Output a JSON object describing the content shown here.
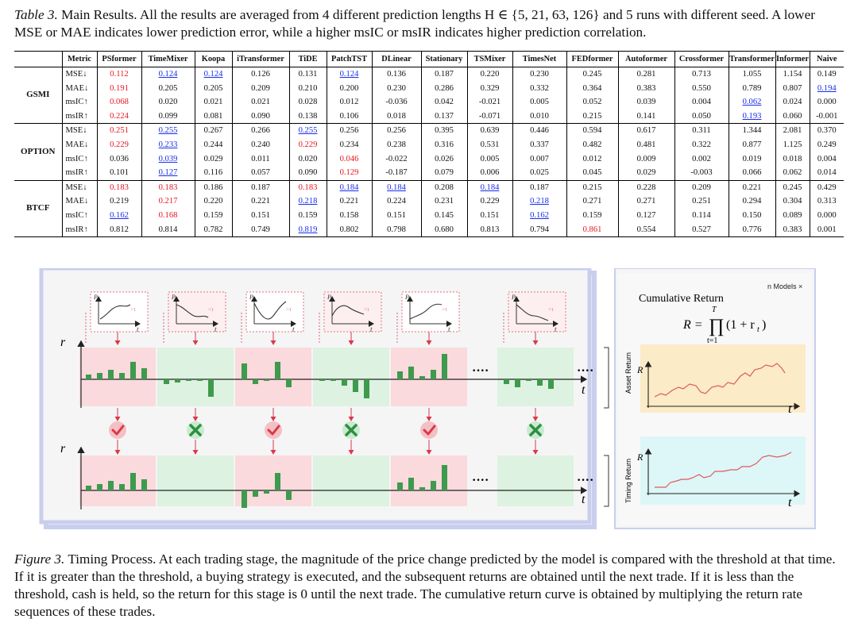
{
  "table_caption": {
    "label": "Table 3.",
    "text": "Main Results. All the results are averaged from 4 different prediction lengths H ∈ {5, 21, 63, 126} and 5 runs with different seed. A lower MSE or MAE indicates lower prediction error, while a higher msIC or msIR indicates higher prediction correlation."
  },
  "table": {
    "headers": [
      "Metric",
      "PSformer",
      "TimeMixer",
      "Koopa",
      "iTransformer",
      "TiDE",
      "PatchTST",
      "DLinear",
      "Stationary",
      "TSMixer",
      "TimesNet",
      "FEDformer",
      "Autoformer",
      "Crossformer",
      "Transformer",
      "Informer",
      "Naive"
    ],
    "groups": [
      {
        "dataset": "GSMI",
        "rows": [
          {
            "metric": "MSE↓",
            "cells": [
              [
                "0.112",
                "r"
              ],
              [
                "0.124",
                "b"
              ],
              [
                "0.124",
                "b"
              ],
              [
                "0.126",
                ""
              ],
              [
                "0.131",
                ""
              ],
              [
                "0.124",
                "b"
              ],
              [
                "0.136",
                ""
              ],
              [
                "0.187",
                ""
              ],
              [
                "0.220",
                ""
              ],
              [
                "0.230",
                ""
              ],
              [
                "0.245",
                ""
              ],
              [
                "0.281",
                ""
              ],
              [
                "0.713",
                ""
              ],
              [
                "1.055",
                ""
              ],
              [
                "1.154",
                ""
              ],
              [
                "0.149",
                ""
              ]
            ]
          },
          {
            "metric": "MAE↓",
            "cells": [
              [
                "0.191",
                "r"
              ],
              [
                "0.205",
                ""
              ],
              [
                "0.205",
                ""
              ],
              [
                "0.209",
                ""
              ],
              [
                "0.210",
                ""
              ],
              [
                "0.200",
                ""
              ],
              [
                "0.230",
                ""
              ],
              [
                "0.286",
                ""
              ],
              [
                "0.329",
                ""
              ],
              [
                "0.332",
                ""
              ],
              [
                "0.364",
                ""
              ],
              [
                "0.383",
                ""
              ],
              [
                "0.550",
                ""
              ],
              [
                "0.789",
                ""
              ],
              [
                "0.807",
                ""
              ],
              [
                "0.194",
                "b"
              ]
            ]
          },
          {
            "metric": "msIC↑",
            "cells": [
              [
                "0.068",
                "r"
              ],
              [
                "0.020",
                ""
              ],
              [
                "0.021",
                ""
              ],
              [
                "0.021",
                ""
              ],
              [
                "0.028",
                ""
              ],
              [
                "0.012",
                ""
              ],
              [
                "-0.036",
                ""
              ],
              [
                "0.042",
                ""
              ],
              [
                "-0.021",
                ""
              ],
              [
                "0.005",
                ""
              ],
              [
                "0.052",
                ""
              ],
              [
                "0.039",
                ""
              ],
              [
                "0.004",
                ""
              ],
              [
                "0.062",
                "b"
              ],
              [
                "0.024",
                ""
              ],
              [
                "0.000",
                ""
              ]
            ]
          },
          {
            "metric": "msIR↑",
            "cells": [
              [
                "0.224",
                "r"
              ],
              [
                "0.099",
                ""
              ],
              [
                "0.081",
                ""
              ],
              [
                "0.090",
                ""
              ],
              [
                "0.138",
                ""
              ],
              [
                "0.106",
                ""
              ],
              [
                "0.018",
                ""
              ],
              [
                "0.137",
                ""
              ],
              [
                "-0.071",
                ""
              ],
              [
                "0.010",
                ""
              ],
              [
                "0.215",
                ""
              ],
              [
                "0.141",
                ""
              ],
              [
                "0.050",
                ""
              ],
              [
                "0.193",
                "b"
              ],
              [
                "0.060",
                ""
              ],
              [
                "-0.001",
                ""
              ]
            ]
          }
        ]
      },
      {
        "dataset": "OPTION",
        "rows": [
          {
            "metric": "MSE↓",
            "cells": [
              [
                "0.251",
                "r"
              ],
              [
                "0.255",
                "b"
              ],
              [
                "0.267",
                ""
              ],
              [
                "0.266",
                ""
              ],
              [
                "0.255",
                "b"
              ],
              [
                "0.256",
                ""
              ],
              [
                "0.256",
                ""
              ],
              [
                "0.395",
                ""
              ],
              [
                "0.639",
                ""
              ],
              [
                "0.446",
                ""
              ],
              [
                "0.594",
                ""
              ],
              [
                "0.617",
                ""
              ],
              [
                "0.311",
                ""
              ],
              [
                "1.344",
                ""
              ],
              [
                "2.081",
                ""
              ],
              [
                "0.370",
                ""
              ]
            ]
          },
          {
            "metric": "MAE↓",
            "cells": [
              [
                "0.229",
                "r"
              ],
              [
                "0.233",
                "b"
              ],
              [
                "0.244",
                ""
              ],
              [
                "0.240",
                ""
              ],
              [
                "0.229",
                "r"
              ],
              [
                "0.234",
                ""
              ],
              [
                "0.238",
                ""
              ],
              [
                "0.316",
                ""
              ],
              [
                "0.531",
                ""
              ],
              [
                "0.337",
                ""
              ],
              [
                "0.482",
                ""
              ],
              [
                "0.481",
                ""
              ],
              [
                "0.322",
                ""
              ],
              [
                "0.877",
                ""
              ],
              [
                "1.125",
                ""
              ],
              [
                "0.249",
                ""
              ]
            ]
          },
          {
            "metric": "msIC↑",
            "cells": [
              [
                "0.036",
                ""
              ],
              [
                "0.039",
                "b"
              ],
              [
                "0.029",
                ""
              ],
              [
                "0.011",
                ""
              ],
              [
                "0.020",
                ""
              ],
              [
                "0.046",
                "r"
              ],
              [
                "-0.022",
                ""
              ],
              [
                "0.026",
                ""
              ],
              [
                "0.005",
                ""
              ],
              [
                "0.007",
                ""
              ],
              [
                "0.012",
                ""
              ],
              [
                "0.009",
                ""
              ],
              [
                "0.002",
                ""
              ],
              [
                "0.019",
                ""
              ],
              [
                "0.018",
                ""
              ],
              [
                "0.004",
                ""
              ]
            ]
          },
          {
            "metric": "msIR↑",
            "cells": [
              [
                "0.101",
                ""
              ],
              [
                "0.127",
                "b"
              ],
              [
                "0.116",
                ""
              ],
              [
                "0.057",
                ""
              ],
              [
                "0.090",
                ""
              ],
              [
                "0.129",
                "r"
              ],
              [
                "-0.187",
                ""
              ],
              [
                "0.079",
                ""
              ],
              [
                "0.006",
                ""
              ],
              [
                "0.025",
                ""
              ],
              [
                "0.045",
                ""
              ],
              [
                "0.029",
                ""
              ],
              [
                "-0.003",
                ""
              ],
              [
                "0.066",
                ""
              ],
              [
                "0.062",
                ""
              ],
              [
                "0.014",
                ""
              ]
            ]
          }
        ]
      },
      {
        "dataset": "BTCF",
        "rows": [
          {
            "metric": "MSE↓",
            "cells": [
              [
                "0.183",
                "r"
              ],
              [
                "0.183",
                "r"
              ],
              [
                "0.186",
                ""
              ],
              [
                "0.187",
                ""
              ],
              [
                "0.183",
                "r"
              ],
              [
                "0.184",
                "b"
              ],
              [
                "0.184",
                "b"
              ],
              [
                "0.208",
                ""
              ],
              [
                "0.184",
                "b"
              ],
              [
                "0.187",
                ""
              ],
              [
                "0.215",
                ""
              ],
              [
                "0.228",
                ""
              ],
              [
                "0.209",
                ""
              ],
              [
                "0.221",
                ""
              ],
              [
                "0.245",
                ""
              ],
              [
                "0.429",
                ""
              ]
            ]
          },
          {
            "metric": "MAE↓",
            "cells": [
              [
                "0.219",
                ""
              ],
              [
                "0.217",
                "r"
              ],
              [
                "0.220",
                ""
              ],
              [
                "0.221",
                ""
              ],
              [
                "0.218",
                "b"
              ],
              [
                "0.221",
                ""
              ],
              [
                "0.224",
                ""
              ],
              [
                "0.231",
                ""
              ],
              [
                "0.229",
                ""
              ],
              [
                "0.218",
                "b"
              ],
              [
                "0.271",
                ""
              ],
              [
                "0.271",
                ""
              ],
              [
                "0.251",
                ""
              ],
              [
                "0.294",
                ""
              ],
              [
                "0.304",
                ""
              ],
              [
                "0.313",
                ""
              ]
            ]
          },
          {
            "metric": "msIC↑",
            "cells": [
              [
                "0.162",
                "b"
              ],
              [
                "0.168",
                "r"
              ],
              [
                "0.159",
                ""
              ],
              [
                "0.151",
                ""
              ],
              [
                "0.159",
                ""
              ],
              [
                "0.158",
                ""
              ],
              [
                "0.151",
                ""
              ],
              [
                "0.145",
                ""
              ],
              [
                "0.151",
                ""
              ],
              [
                "0.162",
                "b"
              ],
              [
                "0.159",
                ""
              ],
              [
                "0.127",
                ""
              ],
              [
                "0.114",
                ""
              ],
              [
                "0.150",
                ""
              ],
              [
                "0.089",
                ""
              ],
              [
                "0.000",
                ""
              ]
            ]
          },
          {
            "metric": "msIR↑",
            "cells": [
              [
                "0.812",
                ""
              ],
              [
                "0.814",
                ""
              ],
              [
                "0.782",
                ""
              ],
              [
                "0.749",
                ""
              ],
              [
                "0.819",
                "b"
              ],
              [
                "0.802",
                ""
              ],
              [
                "0.798",
                ""
              ],
              [
                "0.680",
                ""
              ],
              [
                "0.813",
                ""
              ],
              [
                "0.794",
                ""
              ],
              [
                "0.861",
                "r"
              ],
              [
                "0.554",
                ""
              ],
              [
                "0.527",
                ""
              ],
              [
                "0.776",
                ""
              ],
              [
                "0.383",
                ""
              ],
              [
                "0.001",
                ""
              ]
            ]
          }
        ]
      }
    ]
  },
  "figure": {
    "left_axis_r": "r",
    "left_axis_t": "t",
    "dots": "····",
    "p_label": "P",
    "t_label": "t",
    "small_marks": [
      ">τ",
      "<τ",
      ">τ",
      "<τ",
      ">τ",
      "<τ"
    ],
    "asset_return_label": "Asset Return",
    "timing_return_label": "Timing Return",
    "panel_top_text": "n Models ×",
    "cumulative_title": "Cumulative Return",
    "formula_lhs": "R =",
    "formula_prod": "∏",
    "formula_upper": "T",
    "formula_lower": "t=1",
    "formula_rhs": "(1 + r",
    "formula_sub": "t",
    "formula_close": ")",
    "R_label": "R",
    "colors": {
      "red_zone": "#fadadd",
      "green_zone": "#ddf2e0",
      "bar": "#3e9a4d",
      "check_bg": "#f4c0c4",
      "check": "#d9394a",
      "cross_bg": "#c8ebcf",
      "cross": "#2f8f42",
      "asset_bg": "#fbebc6",
      "timing_bg": "#ddf6f8",
      "curve": "#e05a5a",
      "frame": "#c9ceec"
    }
  },
  "figure_caption": {
    "label": "Figure 3.",
    "text": "Timing Process. At each trading stage, the magnitude of the price change predicted by the model is compared with the threshold at that time. If it is greater than the threshold, a buying strategy is executed, and the subsequent returns are obtained until the next trade. If it is less than the threshold, cash is held, so the return for this stage is 0 until the next trade. The cumulative return curve is obtained by multiplying the return rate sequences of these trades."
  }
}
